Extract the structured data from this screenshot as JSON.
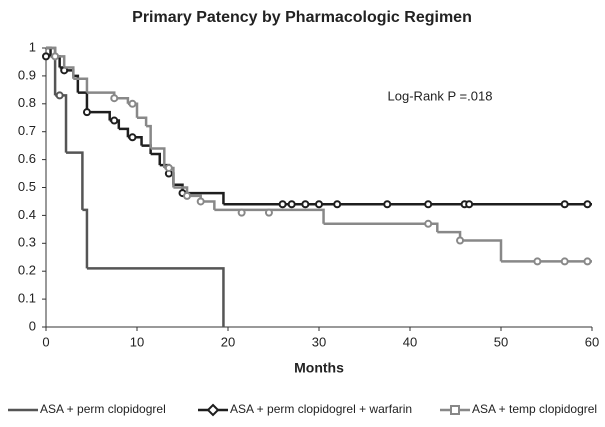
{
  "chart_data": {
    "type": "step",
    "title": "Primary Patency by Pharmacologic Regimen",
    "x_label": "Months",
    "annotation": "Log-Rank P =.018",
    "xlim": [
      0,
      60
    ],
    "xticks": [
      0,
      10,
      20,
      30,
      40,
      50,
      60
    ],
    "ylim": [
      0,
      1
    ],
    "yticks": [
      0,
      0.1,
      0.2,
      0.3,
      0.4,
      0.5,
      0.6,
      0.7,
      0.8,
      0.9,
      1
    ],
    "grid": false,
    "series": [
      {
        "name": "ASA + perm clopidogrel",
        "color": "#555555",
        "marker": "none",
        "x": [
          0,
          1,
          2.2,
          4,
          4.5,
          19.5
        ],
        "values": [
          1,
          0.83,
          0.625,
          0.42,
          0.21,
          0
        ],
        "censored_x": [
          1.5
        ],
        "censored_values": [
          0.83
        ]
      },
      {
        "name": "ASA + perm clopidogrel + warfarin",
        "color": "#1e1e1e",
        "marker": "diamond",
        "x": [
          0,
          0.5,
          1.5,
          2,
          3,
          3.5,
          4.5,
          7,
          8,
          9,
          10.5,
          11.5,
          12.5,
          13.5,
          14,
          15,
          19.5,
          60
        ],
        "values": [
          1,
          0.97,
          0.93,
          0.92,
          0.9,
          0.84,
          0.77,
          0.74,
          0.71,
          0.68,
          0.65,
          0.62,
          0.58,
          0.55,
          0.51,
          0.48,
          0.44,
          0.44
        ],
        "censored_x": [
          0,
          2,
          4.5,
          7.5,
          9.5,
          13.5,
          15,
          26,
          27,
          28.5,
          30,
          32,
          37.5,
          42,
          46,
          46.5,
          57,
          59.5
        ],
        "censored_values": [
          0.97,
          0.92,
          0.77,
          0.74,
          0.68,
          0.55,
          0.48,
          0.44,
          0.44,
          0.44,
          0.44,
          0.44,
          0.44,
          0.44,
          0.44,
          0.44,
          0.44,
          0.44
        ]
      },
      {
        "name": "ASA + temp clopidogrel",
        "color": "#888888",
        "marker": "square",
        "x": [
          0,
          1,
          2,
          3,
          4.5,
          7.5,
          9,
          10,
          11,
          11.5,
          13,
          14,
          15.5,
          17,
          18.5,
          30.5,
          43,
          45.5,
          50,
          60
        ],
        "values": [
          1,
          0.97,
          0.93,
          0.89,
          0.84,
          0.82,
          0.8,
          0.75,
          0.72,
          0.64,
          0.57,
          0.5,
          0.47,
          0.45,
          0.42,
          0.37,
          0.34,
          0.31,
          0.235,
          0.235
        ],
        "censored_x": [
          1,
          7.5,
          9.5,
          13.5,
          15.5,
          17,
          21.5,
          24.5,
          42,
          45.5,
          54,
          57,
          59.5
        ],
        "censored_values": [
          0.97,
          0.82,
          0.8,
          0.57,
          0.47,
          0.45,
          0.41,
          0.41,
          0.37,
          0.31,
          0.235,
          0.235,
          0.235
        ]
      }
    ]
  }
}
